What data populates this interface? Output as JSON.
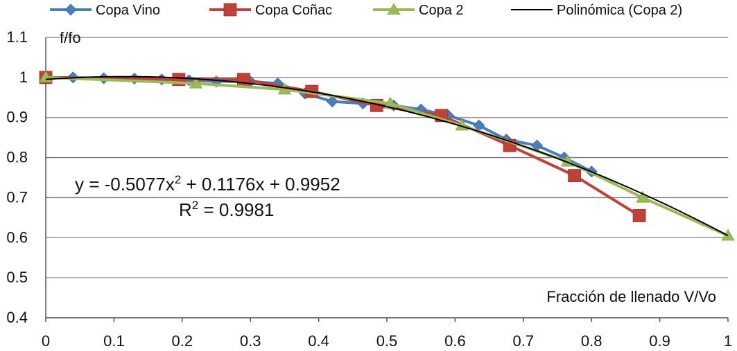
{
  "chart_data": {
    "type": "line",
    "title": "",
    "xlabel": "Fracción de llenado  V/Vo",
    "ylabel": "f/fo",
    "xlim": [
      0,
      1
    ],
    "ylim": [
      0.4,
      1.1
    ],
    "x_ticks": [
      "0",
      "0.1",
      "0.2",
      "0.3",
      "0.4",
      "0.5",
      "0.6",
      "0.7",
      "0.8",
      "0.9",
      "1"
    ],
    "y_ticks": [
      "0.4",
      "0.5",
      "0.6",
      "0.7",
      "0.8",
      "0.9",
      "1",
      "1.1"
    ],
    "grid": "horizontal",
    "legend_position": "top",
    "series": [
      {
        "name": "Copa Vino",
        "color": "#4a7ebb",
        "marker": "diamond",
        "x": [
          0,
          0.04,
          0.085,
          0.13,
          0.17,
          0.21,
          0.25,
          0.3,
          0.34,
          0.38,
          0.42,
          0.465,
          0.51,
          0.55,
          0.59,
          0.635,
          0.675,
          0.72,
          0.76,
          0.8
        ],
        "y": [
          1.0,
          1.0,
          0.998,
          0.997,
          0.995,
          0.993,
          0.99,
          0.99,
          0.985,
          0.96,
          0.94,
          0.935,
          0.93,
          0.92,
          0.905,
          0.88,
          0.845,
          0.83,
          0.8,
          0.765
        ]
      },
      {
        "name": "Copa Coñac",
        "color": "#c0403a",
        "marker": "square",
        "x": [
          0,
          0.195,
          0.29,
          0.39,
          0.485,
          0.58,
          0.68,
          0.775,
          0.87
        ],
        "y": [
          1.0,
          0.995,
          0.995,
          0.965,
          0.93,
          0.905,
          0.83,
          0.755,
          0.655
        ]
      },
      {
        "name": "Copa 2",
        "color": "#9bbb59",
        "marker": "triangle",
        "x": [
          0,
          0.22,
          0.35,
          0.505,
          0.61,
          0.765,
          0.875,
          1.0
        ],
        "y": [
          1.0,
          0.985,
          0.97,
          0.935,
          0.88,
          0.79,
          0.7,
          0.605
        ]
      }
    ],
    "trendline": {
      "name": "Polinómica (Copa 2)",
      "color": "#000000",
      "type": "polynomial",
      "order": 2,
      "coefficients": [
        -0.5077,
        0.1176,
        0.9952
      ],
      "x_range": [
        0,
        1
      ],
      "r2": 0.9981
    },
    "equation_text": {
      "y_label": "y = -0.5077x",
      "y_exp": "2",
      "y_tail": " + 0.1176x + 0.9952",
      "r_label": "R",
      "r_exp": "2",
      "r_tail": " = 0.9981"
    }
  }
}
